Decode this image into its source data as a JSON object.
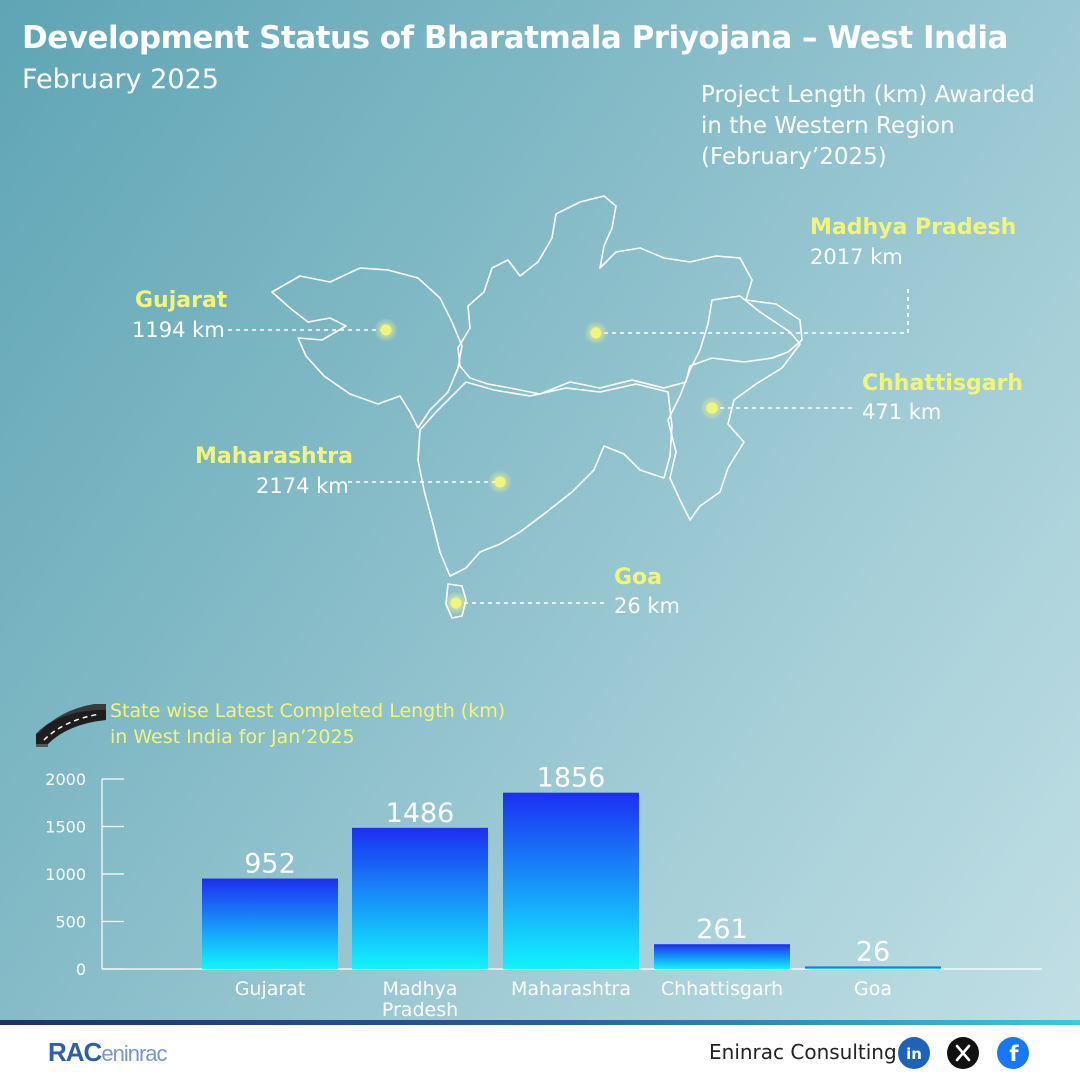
{
  "header": {
    "title": "Development Status of Bharatmala Priyojana – West India",
    "subtitle": "February 2025"
  },
  "map": {
    "caption_lines": [
      "Project  Length (km) Awarded",
      "in the Western Region",
      "(February’2025)"
    ],
    "states": [
      {
        "name": "Gujarat",
        "km": "1194 km"
      },
      {
        "name": "Madhya Pradesh",
        "km": "2017 km"
      },
      {
        "name": "Chhattisgarh",
        "km": "471 km"
      },
      {
        "name": "Maharashtra",
        "km": "2174 km"
      },
      {
        "name": "Goa",
        "km": "26 km"
      }
    ],
    "marker_color": "#f2f57a"
  },
  "bar_caption_lines": [
    "State wise Latest Completed Length (km)",
    "in West India for Jan’2025"
  ],
  "chart_data": {
    "type": "bar",
    "title": "State wise Latest Completed Length (km) in West India for Jan’2025",
    "categories": [
      "Gujarat",
      "Madhya Pradesh",
      "Maharashtra",
      "Chhattisgarh",
      "Goa"
    ],
    "values": [
      952,
      1486,
      1856,
      261,
      26
    ],
    "ylim": [
      0,
      2000
    ],
    "yticks": [
      0,
      500,
      1000,
      1500,
      2000
    ],
    "grid": false,
    "legend": "none",
    "bar_gradient": [
      "#1c2ff2",
      "#12f4ff"
    ]
  },
  "footer": {
    "logo_main": "RAC",
    "logo_sub": "eninrac",
    "company": "Eninrac Consulting",
    "social_icons": [
      "linkedin-icon",
      "x-icon",
      "facebook-icon"
    ]
  }
}
